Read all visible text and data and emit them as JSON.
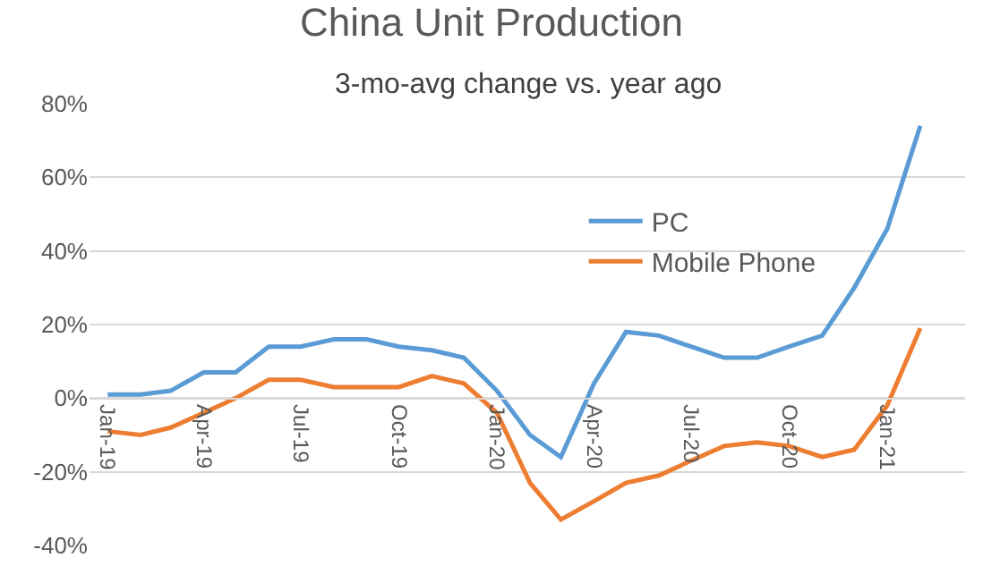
{
  "chart_data": {
    "type": "line",
    "title": "China Unit Production",
    "subtitle": "3-mo-avg change vs. year ago",
    "x": [
      "2019-01",
      "2019-02",
      "2019-03",
      "2019-04",
      "2019-05",
      "2019-06",
      "2019-07",
      "2019-08",
      "2019-09",
      "2019-10",
      "2019-11",
      "2019-12",
      "2020-01",
      "2020-02",
      "2020-03",
      "2020-04",
      "2020-05",
      "2020-06",
      "2020-07",
      "2020-08",
      "2020-09",
      "2020-10",
      "2020-11",
      "2020-12",
      "2021-01",
      "2021-02"
    ],
    "series": [
      {
        "name": "PC",
        "color": "#5b9bd5",
        "values": [
          1,
          1,
          2,
          7,
          7,
          14,
          14,
          16,
          16,
          14,
          13,
          11,
          2,
          -10,
          -16,
          4,
          18,
          17,
          14,
          11,
          11,
          14,
          17,
          30,
          46,
          74
        ]
      },
      {
        "name": "Mobile Phone",
        "color": "#ed7d31",
        "values": [
          -9,
          -10,
          -8,
          -4,
          0,
          5,
          5,
          3,
          3,
          3,
          6,
          4,
          -4,
          -23,
          -33,
          -28,
          -23,
          -21,
          -17,
          -13,
          -12,
          -13,
          -16,
          -14,
          -2,
          19
        ]
      }
    ],
    "xlim": [
      "2018-12-15",
      "2021-03-15"
    ],
    "xticks": [
      {
        "value": "2019-01",
        "label": "Jan-19"
      },
      {
        "value": "2019-04",
        "label": "Apr-19"
      },
      {
        "value": "2019-07",
        "label": "Jul-19"
      },
      {
        "value": "2019-10",
        "label": "Oct-19"
      },
      {
        "value": "2020-01",
        "label": "Jan-20"
      },
      {
        "value": "2020-04",
        "label": "Apr-20"
      },
      {
        "value": "2020-07",
        "label": "Jul-20"
      },
      {
        "value": "2020-10",
        "label": "Oct-20"
      },
      {
        "value": "2021-01",
        "label": "Jan-21"
      }
    ],
    "ylim": [
      -40,
      80
    ],
    "yticks": [
      {
        "value": -40,
        "label": "-40%"
      },
      {
        "value": -20,
        "label": "-20%"
      },
      {
        "value": 0,
        "label": "0%"
      },
      {
        "value": 20,
        "label": "20%"
      },
      {
        "value": 40,
        "label": "40%"
      },
      {
        "value": 60,
        "label": "60%"
      },
      {
        "value": 80,
        "label": "80%"
      }
    ],
    "grid": "y",
    "legend": "center",
    "marker": "none",
    "line_style": "solid"
  }
}
